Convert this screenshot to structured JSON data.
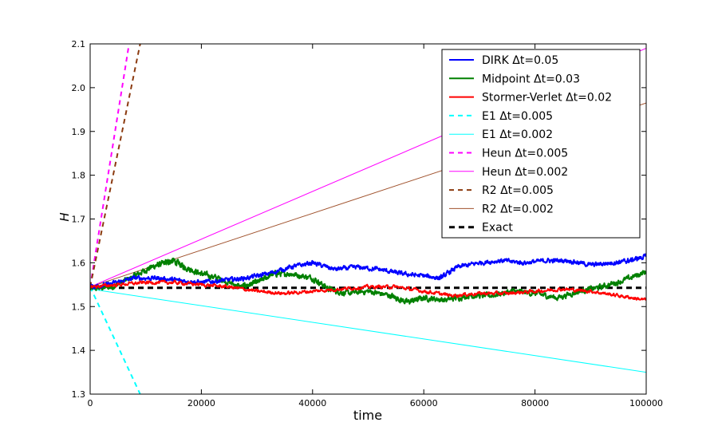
{
  "chart_data": {
    "type": "line",
    "title": "",
    "xlabel": "time",
    "ylabel": "H",
    "xlim": [
      0,
      100000
    ],
    "ylim": [
      1.3,
      2.1
    ],
    "x_ticks": [
      0,
      20000,
      40000,
      60000,
      80000,
      100000
    ],
    "x_tick_labels": [
      "0",
      "20000",
      "40000",
      "60000",
      "80000",
      "100000"
    ],
    "y_ticks": [
      1.3,
      1.4,
      1.5,
      1.6,
      1.7,
      1.8,
      1.9,
      2.0,
      2.1
    ],
    "y_tick_labels": [
      "1.3",
      "1.4",
      "1.5",
      "1.6",
      "1.7",
      "1.8",
      "1.9",
      "2.0",
      "2.1"
    ],
    "grid": false,
    "legend_position": "top-right",
    "series": [
      {
        "name": "DIRK Δt=0.05",
        "color": "#0000ff",
        "style": "solid",
        "width": 2,
        "noise": 0.004,
        "x": [
          0,
          3000,
          8000,
          12000,
          16000,
          20000,
          24000,
          28000,
          32000,
          36000,
          40000,
          44000,
          48000,
          52000,
          56000,
          60000,
          63000,
          66000,
          70000,
          74000,
          78000,
          82000,
          86000,
          90000,
          94000,
          97000,
          100000
        ],
        "y": [
          1.545,
          1.55,
          1.565,
          1.565,
          1.56,
          1.555,
          1.56,
          1.565,
          1.575,
          1.59,
          1.6,
          1.585,
          1.59,
          1.585,
          1.575,
          1.57,
          1.565,
          1.59,
          1.6,
          1.605,
          1.6,
          1.605,
          1.605,
          1.595,
          1.6,
          1.605,
          1.615
        ]
      },
      {
        "name": "Midpoint Δt=0.03",
        "color": "#008000",
        "style": "solid",
        "width": 2,
        "noise": 0.005,
        "x": [
          0,
          4000,
          8000,
          11000,
          13500,
          15000,
          17000,
          20000,
          23000,
          27000,
          30000,
          33000,
          36000,
          40000,
          43000,
          46000,
          50000,
          54000,
          57000,
          60000,
          64000,
          68000,
          72000,
          76000,
          80000,
          84000,
          88000,
          92000,
          96000,
          100000
        ],
        "y": [
          1.54,
          1.545,
          1.57,
          1.59,
          1.6,
          1.605,
          1.59,
          1.575,
          1.565,
          1.545,
          1.555,
          1.575,
          1.575,
          1.565,
          1.54,
          1.53,
          1.535,
          1.525,
          1.51,
          1.52,
          1.515,
          1.525,
          1.525,
          1.535,
          1.53,
          1.52,
          1.535,
          1.545,
          1.56,
          1.58
        ]
      },
      {
        "name": "Stormer-Verlet Δt=0.02",
        "color": "#ff0000",
        "style": "solid",
        "width": 2,
        "noise": 0.003,
        "x": [
          0,
          5000,
          10000,
          15000,
          20000,
          25000,
          30000,
          35000,
          40000,
          45000,
          50000,
          55000,
          60000,
          65000,
          70000,
          75000,
          80000,
          85000,
          90000,
          95000,
          100000
        ],
        "y": [
          1.545,
          1.55,
          1.555,
          1.555,
          1.55,
          1.545,
          1.535,
          1.53,
          1.535,
          1.54,
          1.545,
          1.545,
          1.535,
          1.525,
          1.53,
          1.53,
          1.535,
          1.54,
          1.535,
          1.525,
          1.515
        ]
      },
      {
        "name": "E1 Δt=0.005",
        "color": "#00ffff",
        "style": "dashed",
        "width": 2,
        "noise": 0,
        "x": [
          0,
          9000
        ],
        "y": [
          1.545,
          1.3
        ]
      },
      {
        "name": "E1 Δt=0.002",
        "color": "#00ffff",
        "style": "solid",
        "width": 1,
        "noise": 0,
        "x": [
          0,
          100000
        ],
        "y": [
          1.54,
          1.35
        ]
      },
      {
        "name": "Heun Δt=0.005",
        "color": "#ff00ff",
        "style": "dashed",
        "width": 2,
        "noise": 0,
        "x": [
          0,
          7000
        ],
        "y": [
          1.545,
          2.1
        ]
      },
      {
        "name": "Heun Δt=0.002",
        "color": "#ff00ff",
        "style": "solid",
        "width": 1,
        "noise": 0,
        "x": [
          0,
          100000
        ],
        "y": [
          1.545,
          2.09
        ]
      },
      {
        "name": "R2 Δt=0.005",
        "color": "#8b3a0f",
        "style": "dashed",
        "width": 2,
        "noise": 0,
        "x": [
          0,
          9000
        ],
        "y": [
          1.545,
          2.1
        ]
      },
      {
        "name": "R2 Δt=0.002",
        "color": "#a0522d",
        "style": "solid",
        "width": 1,
        "noise": 0,
        "x": [
          0,
          100000
        ],
        "y": [
          1.545,
          1.965
        ]
      },
      {
        "name": "Exact",
        "color": "#000000",
        "style": "dashed",
        "width": 3,
        "noise": 0,
        "x": [
          0,
          100000
        ],
        "y": [
          1.543,
          1.543
        ]
      }
    ]
  }
}
